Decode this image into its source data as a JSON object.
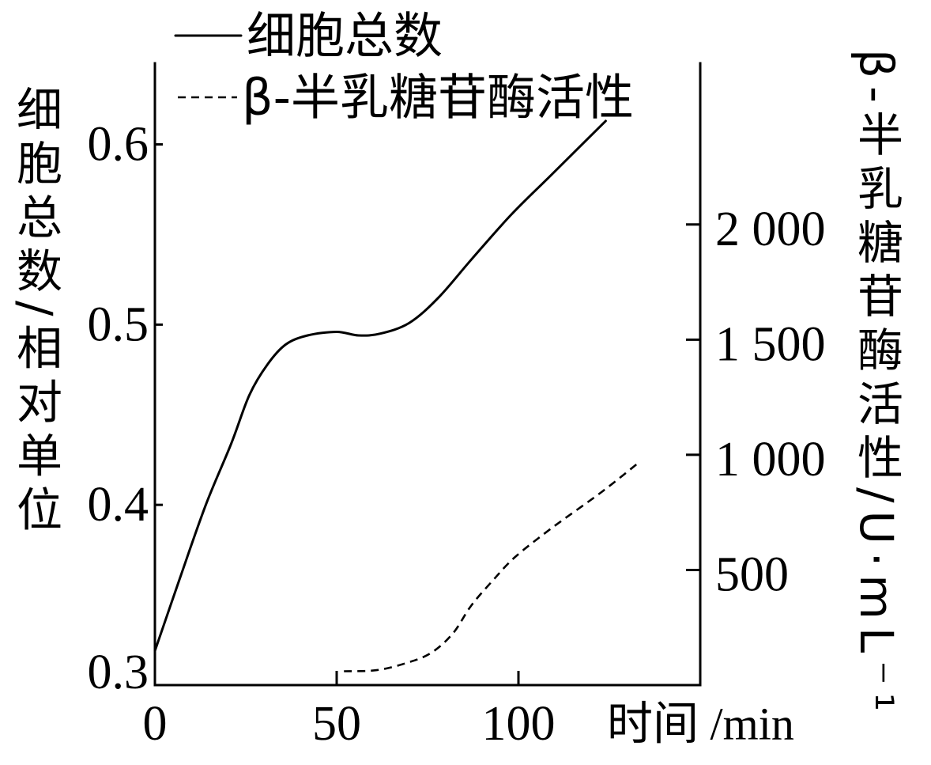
{
  "chart_data": {
    "type": "line",
    "xlabel": "时间 /min",
    "ylabel": "细胞总数/相对单位",
    "ylabel_right": "β-半乳糖苷酶活性/U·mL⁻¹",
    "xlim": [
      0,
      150
    ],
    "ylim": [
      0.3,
      0.645
    ],
    "ylim_right": [
      0,
      2700
    ],
    "x_ticks": [
      0,
      50,
      100
    ],
    "x_tick_labels": [
      "0",
      "50",
      "100"
    ],
    "y_ticks": [
      0.3,
      0.4,
      0.5,
      0.6
    ],
    "y_tick_labels": [
      "0.3",
      "0.4",
      "0.5",
      "0.6"
    ],
    "y_right_ticks": [
      500,
      1000,
      1500,
      2000
    ],
    "y_right_tick_labels": [
      "500",
      "1 000",
      "1 500",
      "2 000"
    ],
    "grid": false,
    "legend": "top",
    "series": [
      {
        "name": "细胞总数",
        "y_axis": "left",
        "line_style": "solid",
        "color": "#000000",
        "x": [
          0,
          7,
          14,
          21,
          26,
          31,
          36,
          42,
          50,
          56,
          62,
          70,
          78,
          87,
          98,
          109,
          124
        ],
        "y": [
          0.319,
          0.36,
          0.4,
          0.434,
          0.461,
          0.478,
          0.489,
          0.494,
          0.496,
          0.494,
          0.495,
          0.501,
          0.515,
          0.536,
          0.561,
          0.583,
          0.613
        ]
      },
      {
        "name": "β-半乳糖苷酶活性",
        "y_axis": "right",
        "line_style": "dashed",
        "color": "#000000",
        "x": [
          52,
          61,
          69,
          76,
          82,
          87,
          93,
          99,
          109,
          123,
          133
        ],
        "y": [
          60,
          65,
          95,
          140,
          225,
          345,
          455,
          555,
          680,
          840,
          965
        ]
      }
    ]
  }
}
